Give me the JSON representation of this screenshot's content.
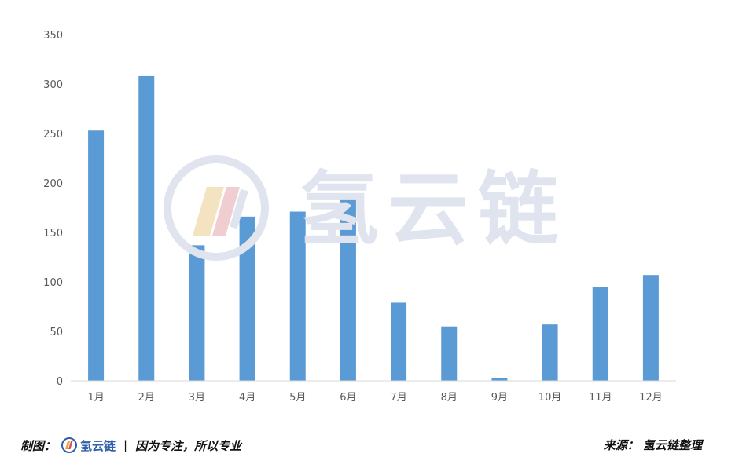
{
  "chart_data": {
    "type": "bar",
    "categories": [
      "1月",
      "2月",
      "3月",
      "4月",
      "5月",
      "6月",
      "7月",
      "8月",
      "9月",
      "10月",
      "11月",
      "12月"
    ],
    "values": [
      253,
      308,
      137,
      166,
      171,
      188,
      79,
      55,
      3,
      57,
      95,
      107
    ],
    "ylim": [
      0,
      350
    ],
    "yticks": [
      0,
      50,
      100,
      150,
      200,
      250,
      300,
      350
    ],
    "bar_color": "#5b9bd5",
    "grid": false,
    "legend": "none"
  },
  "watermark": {
    "text": "氢云链"
  },
  "footer": {
    "maker_label": "制图：",
    "brand_name": "氢云链",
    "separator": "|",
    "slogan": "因为专注，所以专业",
    "source_label": "来源：",
    "source_text": "氢云链整理"
  },
  "colors": {
    "brand": "#2f5fa8",
    "watermark": "#dfe4ee",
    "axis_text": "#595959",
    "axis_line": "#d9d9d9"
  }
}
